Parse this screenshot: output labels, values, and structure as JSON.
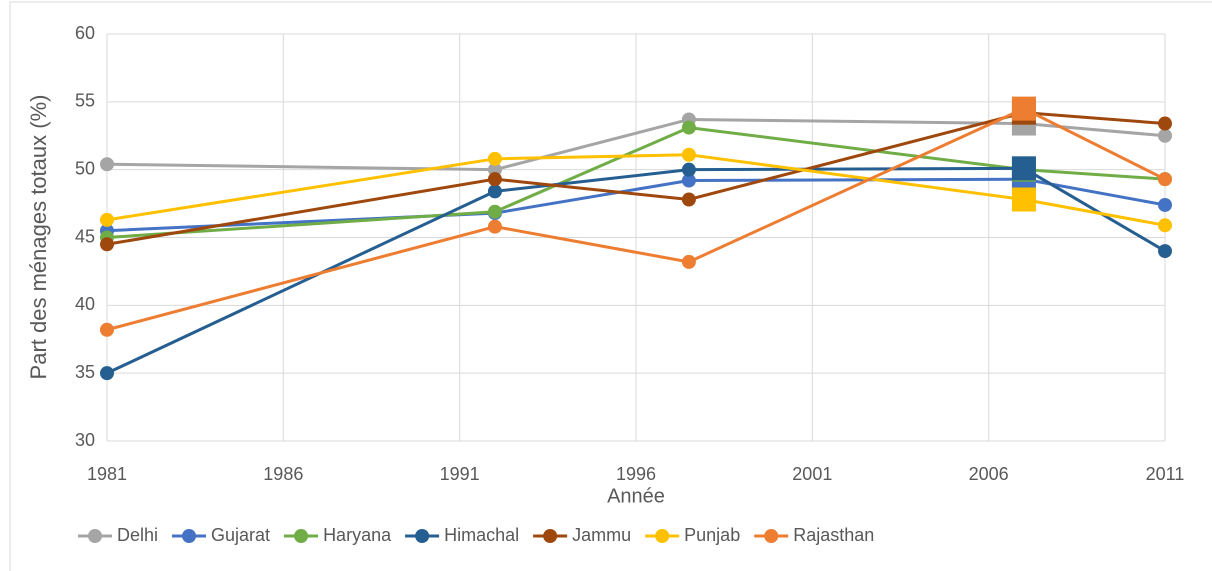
{
  "chart_data": {
    "type": "line",
    "y_label": "Part des ménages totaux (%)",
    "x_label": "Année",
    "x": [
      1981,
      1992,
      1997.5,
      2007,
      2011
    ],
    "xlim": [
      1981,
      2011
    ],
    "xticks": [
      1981,
      1986,
      1991,
      1996,
      2001,
      2006,
      2011
    ],
    "ylim": [
      30,
      60
    ],
    "yticks": [
      30,
      35,
      40,
      45,
      50,
      55,
      60
    ],
    "grid": true,
    "legend": "bottom",
    "series": [
      {
        "name": "Delhi",
        "color": "#a5a5a5",
        "values": [
          50.4,
          50.0,
          53.7,
          53.4,
          52.5
        ]
      },
      {
        "name": "Gujarat",
        "color": "#4472c4",
        "values": [
          45.5,
          46.8,
          49.2,
          49.3,
          47.4
        ]
      },
      {
        "name": "Haryana",
        "color": "#70ad47",
        "values": [
          45.0,
          46.9,
          53.1,
          50.0,
          49.3
        ]
      },
      {
        "name": "Himachal",
        "color": "#255e91",
        "values": [
          35.0,
          48.4,
          50.0,
          50.1,
          44.0
        ]
      },
      {
        "name": "Jammu",
        "color": "#9e480e",
        "values": [
          44.5,
          49.3,
          47.8,
          54.2,
          53.4
        ]
      },
      {
        "name": "Punjab",
        "color": "#ffc000",
        "values": [
          46.3,
          50.8,
          51.1,
          47.8,
          45.9
        ]
      },
      {
        "name": "Rajasthan",
        "color": "#ed7d31",
        "values": [
          38.2,
          45.8,
          43.2,
          54.5,
          49.3
        ]
      }
    ]
  }
}
